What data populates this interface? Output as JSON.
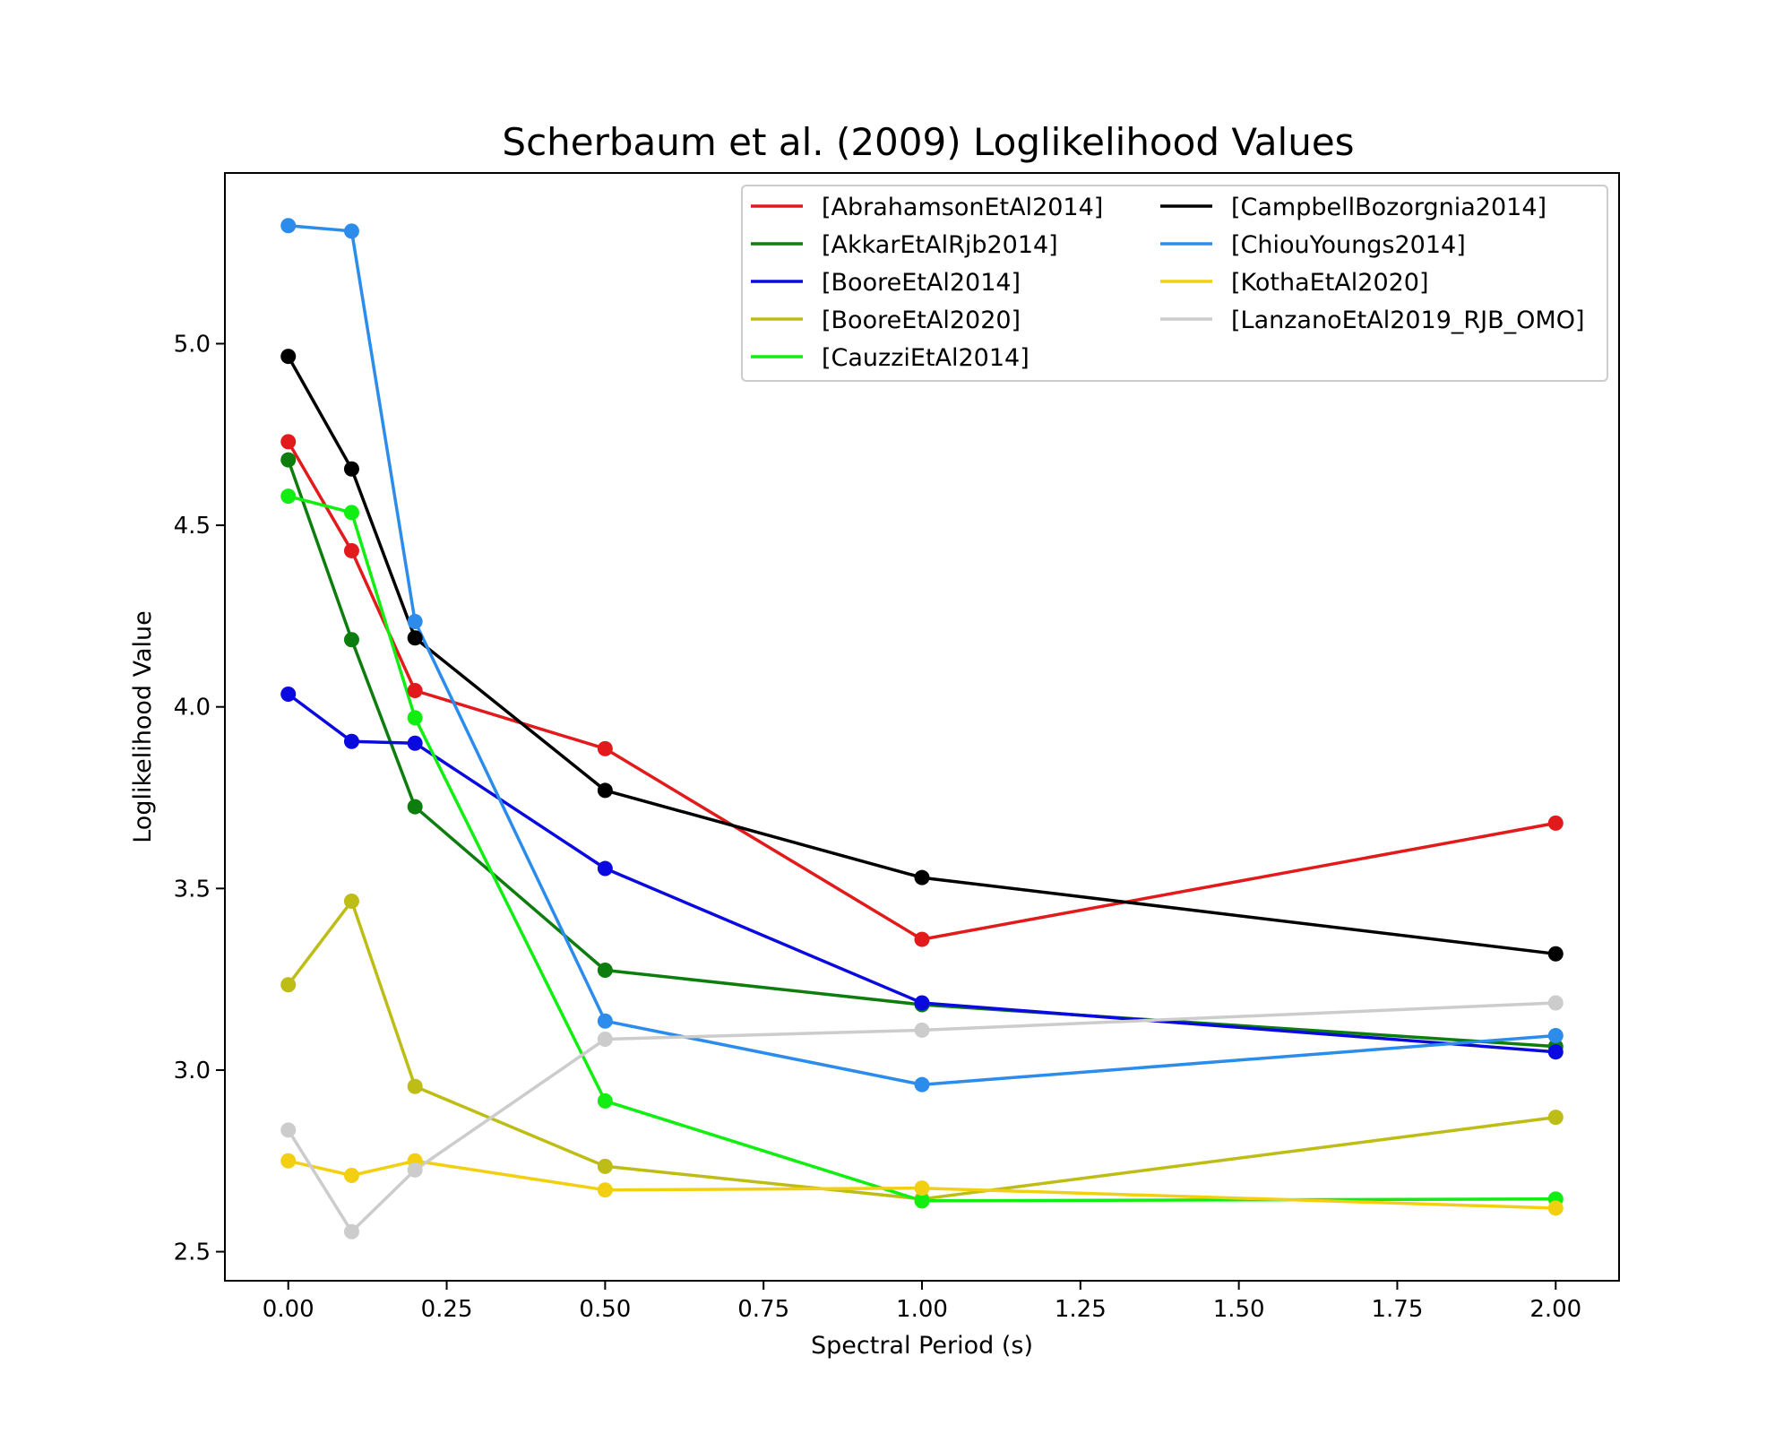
{
  "chart_data": {
    "type": "line",
    "title": "Scherbaum et al. (2009) Loglikelihood Values",
    "xlabel": "Spectral Period (s)",
    "ylabel": "Loglikelihood Value",
    "xlim": [
      -0.1,
      2.1
    ],
    "ylim": [
      2.42,
      5.47
    ],
    "x_ticks": [
      0.0,
      0.25,
      0.5,
      0.75,
      1.0,
      1.25,
      1.5,
      1.75,
      2.0
    ],
    "x_tick_labels": [
      "0.00",
      "0.25",
      "0.50",
      "0.75",
      "1.00",
      "1.25",
      "1.50",
      "1.75",
      "2.00"
    ],
    "y_ticks": [
      2.5,
      3.0,
      3.5,
      4.0,
      4.5,
      5.0
    ],
    "y_tick_labels": [
      "2.5",
      "3.0",
      "3.5",
      "4.0",
      "4.5",
      "5.0"
    ],
    "grid": false,
    "legend_position": "top-right",
    "legend_columns": 2,
    "x": [
      0.0,
      0.1,
      0.2,
      0.5,
      1.0,
      2.0
    ],
    "series": [
      {
        "name": "[AbrahamsonEtAl2014]",
        "color": "#e31a1c",
        "values": [
          4.73,
          4.43,
          4.045,
          3.885,
          3.36,
          3.68
        ]
      },
      {
        "name": "[AkkarEtAlRjb2014]",
        "color": "#0d7d0d",
        "values": [
          4.68,
          4.185,
          3.725,
          3.275,
          3.18,
          3.065
        ]
      },
      {
        "name": "[BooreEtAl2014]",
        "color": "#0a0ae0",
        "values": [
          4.035,
          3.905,
          3.9,
          3.555,
          3.185,
          3.05
        ]
      },
      {
        "name": "[BooreEtAl2020]",
        "color": "#bdbd16",
        "values": [
          3.235,
          3.465,
          2.955,
          2.735,
          2.645,
          2.87
        ]
      },
      {
        "name": "[CauzziEtAl2014]",
        "color": "#11ee11",
        "values": [
          4.58,
          4.535,
          3.97,
          2.915,
          2.64,
          2.645
        ]
      },
      {
        "name": "[CampbellBozorgnia2014]",
        "color": "#000000",
        "values": [
          4.965,
          4.655,
          4.19,
          3.77,
          3.53,
          3.32
        ]
      },
      {
        "name": "[ChiouYoungs2014]",
        "color": "#2b8ceb",
        "values": [
          5.325,
          5.31,
          4.235,
          3.135,
          2.96,
          3.095
        ]
      },
      {
        "name": "[KothaEtAl2020]",
        "color": "#f2d011",
        "values": [
          2.75,
          2.71,
          2.75,
          2.67,
          2.675,
          2.62
        ]
      },
      {
        "name": "[LanzanoEtAl2019_RJB_OMO]",
        "color": "#cccccc",
        "values": [
          2.835,
          2.555,
          2.725,
          3.085,
          3.11,
          3.185
        ]
      }
    ]
  }
}
